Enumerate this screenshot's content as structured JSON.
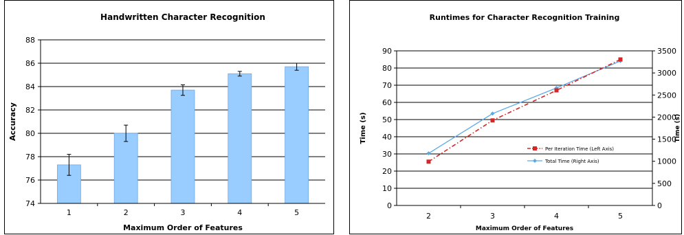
{
  "chart_data": [
    {
      "type": "bar",
      "title": "Handwritten Character Recognition",
      "xlabel": "Maximum Order of Features",
      "ylabel": "Accuracy",
      "categories": [
        "1",
        "2",
        "3",
        "4",
        "5"
      ],
      "values": [
        77.3,
        80.0,
        83.7,
        85.1,
        85.7
      ],
      "error": [
        0.9,
        0.7,
        0.45,
        0.2,
        0.3
      ],
      "ylim": [
        74,
        88
      ],
      "yticks": [
        "74",
        "76",
        "78",
        "80",
        "82",
        "84",
        "86",
        "88"
      ],
      "grid": true,
      "colors": {
        "bar": "#99ccff",
        "bar_edge": "#6fa8e6"
      }
    },
    {
      "type": "line",
      "title": "Runtimes for Character Recognition Training",
      "xlabel": "Maximum Order of Features",
      "ylabel": "Time (s)",
      "ylabel_right": "Time (s)",
      "x": [
        "2",
        "3",
        "4",
        "5"
      ],
      "ylim": [
        0,
        90
      ],
      "yticks": [
        "0",
        "10",
        "20",
        "30",
        "40",
        "50",
        "60",
        "70",
        "80",
        "90"
      ],
      "ylim_right": [
        0,
        3500
      ],
      "yticks_right": [
        "0",
        "500",
        "1000",
        "1500",
        "2000",
        "2500",
        "3000",
        "3500"
      ],
      "grid": true,
      "legend_position": "right",
      "series": [
        {
          "name": "Per Iteration Time (Left Axis)",
          "axis": "left",
          "values": [
            25.5,
            49.5,
            67,
            85
          ],
          "color": "#d62728"
        },
        {
          "name": "Total Time (Right Axis)",
          "axis": "right",
          "values": [
            1180,
            2080,
            2660,
            3270
          ],
          "color": "#5aa9e6"
        }
      ]
    }
  ]
}
